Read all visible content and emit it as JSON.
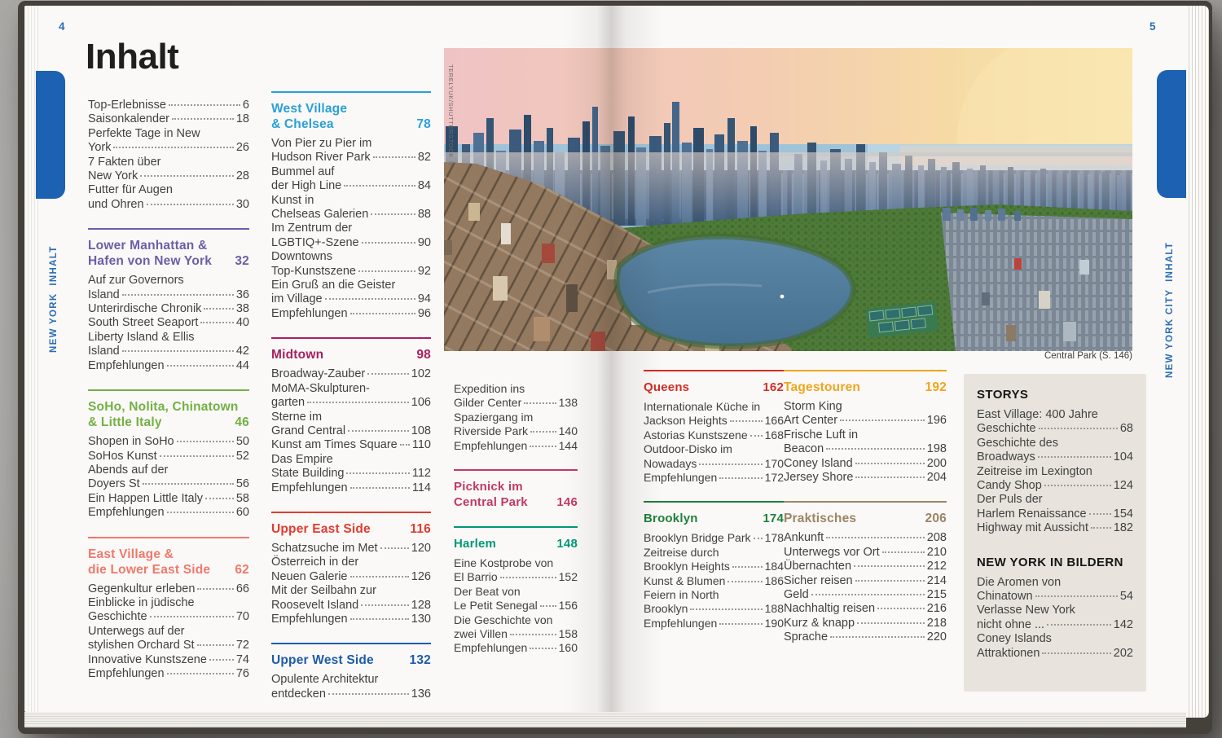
{
  "book": {
    "left_page_number": "4",
    "right_page_number": "5",
    "title": "Inhalt",
    "left_tab_label": "NEW YORK  INHALT",
    "right_tab_label": "NEW YORK CITY  INHALT"
  },
  "photo": {
    "caption": "Central Park (S. 146)",
    "credit": "TERELYUK/SHUTTERSTOCK ©",
    "alt": "Aerial view of Central Park and the Manhattan skyline at sunset, reservoir in the foreground"
  },
  "palette": {
    "page_bg": "#faf9f7",
    "text": "#414141",
    "accent_blue": "#2b6db5",
    "tab_blue": "#1d62b2",
    "box_bg": "#e8e4dd",
    "purple": "#6a5fa8",
    "green": "#74b044",
    "coral": "#f0796c",
    "cyan": "#2ba0d8",
    "magenta": "#a8215f",
    "red": "#e23b30",
    "dark_blue": "#1d5ca9",
    "berry": "#c23a64",
    "teal": "#009878",
    "queens_red": "#d22d27",
    "brooklyn_green": "#20803c",
    "amber": "#efa51e",
    "taupe": "#9c8466"
  },
  "toc_columns": [
    {
      "sections": [
        {
          "rule": false,
          "title_lines": null,
          "page": null,
          "color": null,
          "items": [
            {
              "lines": [
                "Top-Erlebnisse"
              ],
              "page": "6"
            },
            {
              "lines": [
                "Saisonkalender"
              ],
              "page": "18"
            },
            {
              "lines": [
                "Perfekte Tage in New",
                "York"
              ],
              "page": "26"
            },
            {
              "lines": [
                "7 Fakten über",
                "New York"
              ],
              "page": "28"
            },
            {
              "lines": [
                "Futter für Augen",
                "und Ohren"
              ],
              "page": "30"
            }
          ]
        },
        {
          "rule": true,
          "title_lines": [
            "Lower Manhattan &",
            "Hafen von New York"
          ],
          "page": "32",
          "color": "#6a5fa8",
          "items": [
            {
              "lines": [
                "Auf zur Governors",
                "Island"
              ],
              "page": "36"
            },
            {
              "lines": [
                "Unterirdische Chronik"
              ],
              "page": "38"
            },
            {
              "lines": [
                "South Street Seaport"
              ],
              "page": "40"
            },
            {
              "lines": [
                "Liberty Island & Ellis",
                "Island"
              ],
              "page": "42"
            },
            {
              "lines": [
                "Empfehlungen"
              ],
              "page": "44"
            }
          ]
        },
        {
          "rule": true,
          "title_lines": [
            "SoHo, Nolita, Chinatown",
            "& Little Italy"
          ],
          "page": "46",
          "color": "#74b044",
          "items": [
            {
              "lines": [
                "Shopen in SoHo"
              ],
              "page": "50"
            },
            {
              "lines": [
                "SoHos Kunst"
              ],
              "page": "52"
            },
            {
              "lines": [
                "Abends auf der",
                "Doyers St"
              ],
              "page": "56"
            },
            {
              "lines": [
                "Ein Happen Little Italy"
              ],
              "page": "58"
            },
            {
              "lines": [
                "Empfehlungen"
              ],
              "page": "60"
            }
          ]
        },
        {
          "rule": true,
          "title_lines": [
            "East Village &",
            "die Lower East Side"
          ],
          "page": "62",
          "color": "#f0796c",
          "items": [
            {
              "lines": [
                "Gegenkultur erleben"
              ],
              "page": "66"
            },
            {
              "lines": [
                "Einblicke in jüdische",
                "Geschichte"
              ],
              "page": "70"
            },
            {
              "lines": [
                "Unterwegs auf der",
                "stylishen Orchard St"
              ],
              "page": "72"
            },
            {
              "lines": [
                "Innovative Kunstszene"
              ],
              "page": "74"
            },
            {
              "lines": [
                "Empfehlungen"
              ],
              "page": "76"
            }
          ]
        }
      ]
    },
    {
      "sections": [
        {
          "rule": true,
          "title_lines": [
            "West Village",
            "& Chelsea"
          ],
          "page": "78",
          "color": "#2ba0d8",
          "items": [
            {
              "lines": [
                "Von Pier zu Pier im",
                "Hudson River Park"
              ],
              "page": "82"
            },
            {
              "lines": [
                "Bummel auf",
                "der High Line"
              ],
              "page": "84"
            },
            {
              "lines": [
                "Kunst in",
                "Chelseas Galerien"
              ],
              "page": "88"
            },
            {
              "lines": [
                "Im Zentrum der",
                "LGBTIQ+-Szene"
              ],
              "page": "90"
            },
            {
              "lines": [
                "Downtowns",
                "Top-Kunstszene"
              ],
              "page": "92"
            },
            {
              "lines": [
                "Ein Gruß an die Geister",
                "im Village"
              ],
              "page": "94"
            },
            {
              "lines": [
                "Empfehlungen"
              ],
              "page": "96"
            }
          ]
        },
        {
          "rule": true,
          "title_lines": [
            "Midtown"
          ],
          "page": "98",
          "color": "#a8215f",
          "items": [
            {
              "lines": [
                "Broadway-Zauber"
              ],
              "page": "102"
            },
            {
              "lines": [
                "MoMA-Skulpturen-",
                "garten"
              ],
              "page": "106"
            },
            {
              "lines": [
                "Sterne im",
                "Grand Central"
              ],
              "page": "108"
            },
            {
              "lines": [
                "Kunst am Times Square"
              ],
              "page": "110"
            },
            {
              "lines": [
                "Das Empire",
                "State Building"
              ],
              "page": "112"
            },
            {
              "lines": [
                "Empfehlungen"
              ],
              "page": "114"
            }
          ]
        },
        {
          "rule": true,
          "title_lines": [
            "Upper East Side"
          ],
          "page": "116",
          "color": "#e23b30",
          "items": [
            {
              "lines": [
                "Schatzsuche im Met"
              ],
              "page": "120"
            },
            {
              "lines": [
                "Österreich in der",
                "Neuen Galerie"
              ],
              "page": "126"
            },
            {
              "lines": [
                "Mit der Seilbahn zur",
                "Roosevelt Island"
              ],
              "page": "128"
            },
            {
              "lines": [
                "Empfehlungen"
              ],
              "page": "130"
            }
          ]
        },
        {
          "rule": true,
          "title_lines": [
            "Upper West Side"
          ],
          "page": "132",
          "color": "#1d5ca9",
          "items": [
            {
              "lines": [
                "Opulente Architektur",
                "entdecken"
              ],
              "page": "136"
            }
          ]
        }
      ]
    },
    {
      "sections": [
        {
          "rule": false,
          "title_lines": null,
          "page": null,
          "color": null,
          "items": [
            {
              "lines": [
                "Expedition ins",
                "Gilder Center"
              ],
              "page": "138"
            },
            {
              "lines": [
                "Spaziergang im",
                "Riverside Park"
              ],
              "page": "140"
            },
            {
              "lines": [
                "Empfehlungen"
              ],
              "page": "144"
            }
          ]
        },
        {
          "rule": true,
          "title_lines": [
            "Picknick im",
            "Central Park"
          ],
          "page": "146",
          "color": "#c23a64",
          "items": []
        },
        {
          "rule": true,
          "title_lines": [
            "Harlem"
          ],
          "page": "148",
          "color": "#009878",
          "items": [
            {
              "lines": [
                "Eine Kostprobe von",
                "El Barrio"
              ],
              "page": "152"
            },
            {
              "lines": [
                "Der Beat von",
                "Le Petit Senegal"
              ],
              "page": "156"
            },
            {
              "lines": [
                "Die Geschichte von",
                "zwei Villen"
              ],
              "page": "158"
            },
            {
              "lines": [
                "Empfehlungen"
              ],
              "page": "160"
            }
          ]
        }
      ]
    },
    {
      "sections": [
        {
          "rule": true,
          "title_lines": [
            "Queens"
          ],
          "page": "162",
          "color": "#d22d27",
          "items": [
            {
              "lines": [
                "Internationale Küche in",
                "Jackson Heights"
              ],
              "page": "166"
            },
            {
              "lines": [
                "Astorias Kunstszene"
              ],
              "page": "168"
            },
            {
              "lines": [
                "Outdoor-Disko im",
                "Nowadays"
              ],
              "page": "170"
            },
            {
              "lines": [
                "Empfehlungen"
              ],
              "page": "172"
            }
          ]
        },
        {
          "rule": true,
          "title_lines": [
            "Brooklyn"
          ],
          "page": "174",
          "color": "#20803c",
          "items": [
            {
              "lines": [
                "Brooklyn Bridge Park"
              ],
              "page": "178"
            },
            {
              "lines": [
                "Zeitreise durch",
                "Brooklyn Heights"
              ],
              "page": "184"
            },
            {
              "lines": [
                "Kunst & Blumen"
              ],
              "page": "186"
            },
            {
              "lines": [
                "Feiern in North",
                "Brooklyn"
              ],
              "page": "188"
            },
            {
              "lines": [
                "Empfehlungen"
              ],
              "page": "190"
            }
          ]
        }
      ]
    },
    {
      "sections": [
        {
          "rule": true,
          "title_lines": [
            "Tagestouren"
          ],
          "page": "192",
          "color": "#efa51e",
          "items": [
            {
              "lines": [
                "Storm King",
                "Art Center"
              ],
              "page": "196"
            },
            {
              "lines": [
                "Frische Luft in",
                "Beacon"
              ],
              "page": "198"
            },
            {
              "lines": [
                "Coney Island"
              ],
              "page": "200"
            },
            {
              "lines": [
                "Jersey Shore"
              ],
              "page": "204"
            }
          ]
        },
        {
          "rule": true,
          "title_lines": [
            "Praktisches"
          ],
          "page": "206",
          "color": "#9c8466",
          "items": [
            {
              "lines": [
                "Ankunft"
              ],
              "page": "208"
            },
            {
              "lines": [
                "Unterwegs vor Ort"
              ],
              "page": "210"
            },
            {
              "lines": [
                "Übernachten"
              ],
              "page": "212"
            },
            {
              "lines": [
                "Sicher reisen"
              ],
              "page": "214"
            },
            {
              "lines": [
                "Geld"
              ],
              "page": "215"
            },
            {
              "lines": [
                "Nachhaltig reisen"
              ],
              "page": "216"
            },
            {
              "lines": [
                "Kurz & knapp"
              ],
              "page": "218"
            },
            {
              "lines": [
                "Sprache"
              ],
              "page": "220"
            }
          ]
        }
      ]
    }
  ],
  "storys_box": {
    "groups": [
      {
        "heading": "STORYS",
        "items": [
          {
            "lines": [
              "East Village: 400 Jahre",
              "Geschichte"
            ],
            "page": "68"
          },
          {
            "lines": [
              "Geschichte des",
              "Broadways"
            ],
            "page": "104"
          },
          {
            "lines": [
              "Zeitreise im Lexington",
              "Candy Shop"
            ],
            "page": "124"
          },
          {
            "lines": [
              "Der Puls der",
              "Harlem Renaissance"
            ],
            "page": "154"
          },
          {
            "lines": [
              "Highway mit Aussicht"
            ],
            "page": "182"
          }
        ]
      },
      {
        "heading": "NEW YORK IN BILDERN",
        "items": [
          {
            "lines": [
              "Die Aromen von",
              "Chinatown"
            ],
            "page": "54"
          },
          {
            "lines": [
              "Verlasse New York",
              "nicht ohne ..."
            ],
            "page": "142"
          },
          {
            "lines": [
              "Coney Islands",
              "Attraktionen"
            ],
            "page": "202"
          }
        ]
      }
    ]
  }
}
